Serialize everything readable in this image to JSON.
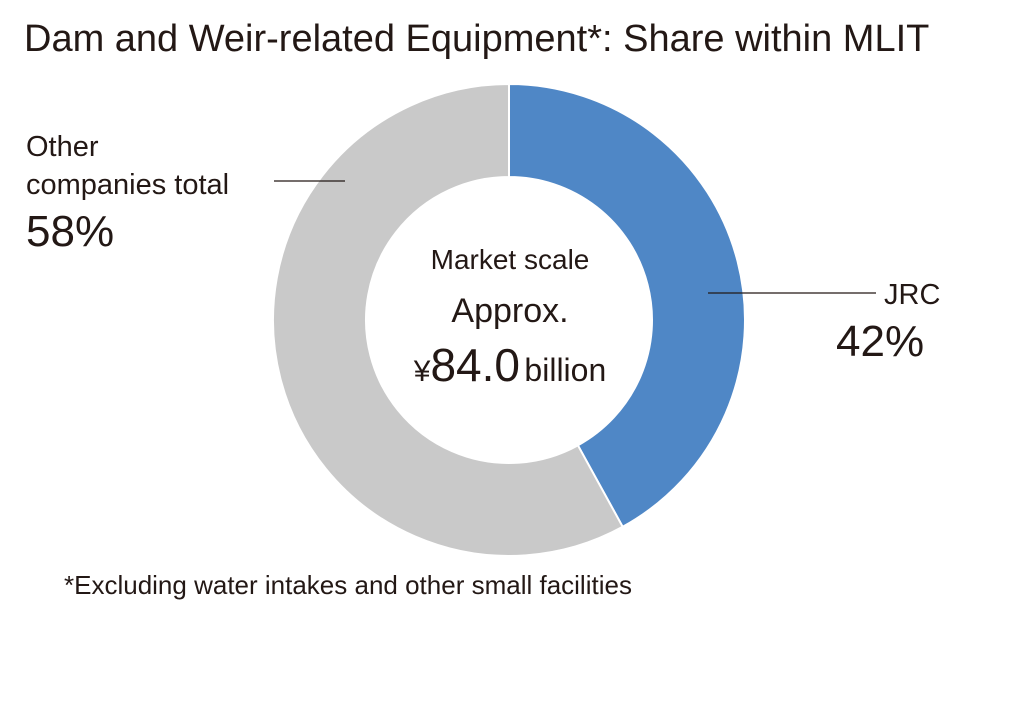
{
  "chart_data": {
    "type": "pie",
    "title": "Dam and Weir-related Equipment*: Share within MLIT",
    "slices": [
      {
        "label": "JRC",
        "value": 42,
        "value_label": "42%",
        "color": "#4f87c6"
      },
      {
        "label": "Other companies total",
        "label_lines": [
          "Other",
          "companies total"
        ],
        "value": 58,
        "value_label": "58%",
        "color": "#c9c9c9"
      }
    ],
    "center_text": {
      "line1": "Market scale",
      "line2": "Approx.",
      "currency": "¥",
      "amount": "84.0",
      "unit": "billion"
    },
    "footnote": "*Excluding water intakes and other small facilities"
  }
}
